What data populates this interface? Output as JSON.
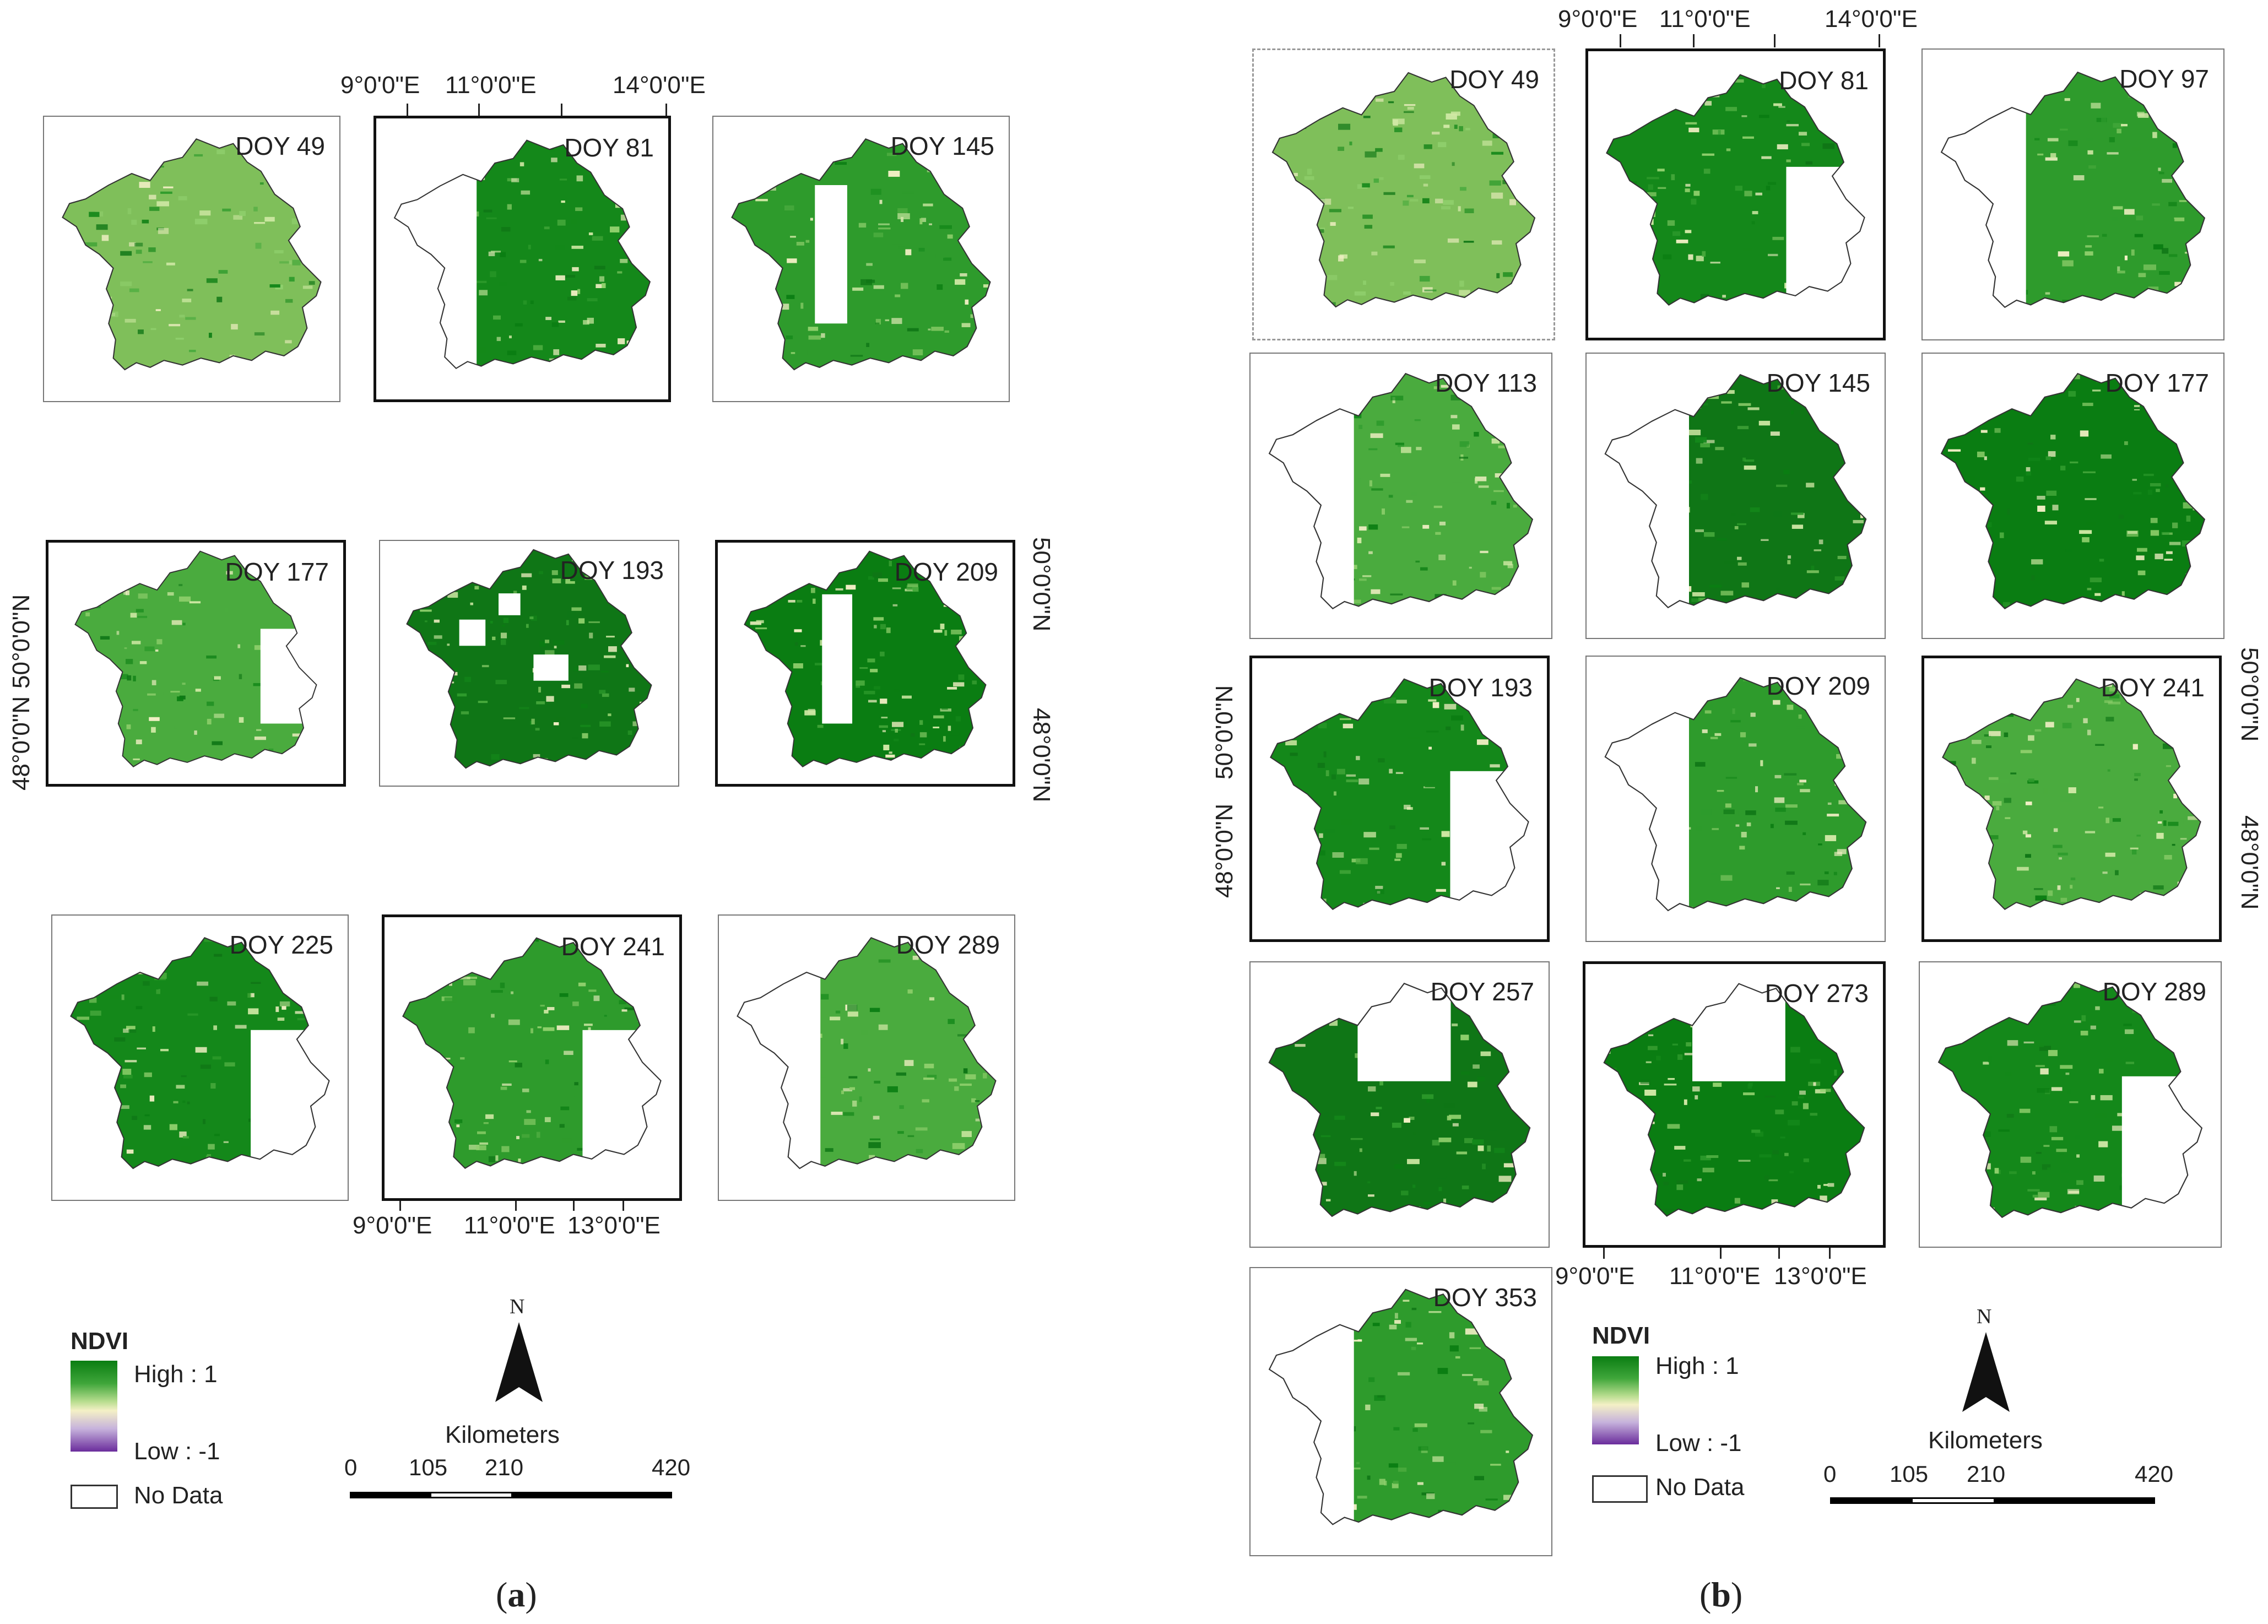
{
  "figure_a": {
    "label": "a",
    "panels": [
      {
        "doy": "DOY 49",
        "gaps": "none"
      },
      {
        "doy": "DOY 81",
        "gaps": "west"
      },
      {
        "doy": "DOY 145",
        "gaps": "strip"
      },
      {
        "doy": "DOY 177",
        "gaps": "east-strip"
      },
      {
        "doy": "DOY 193",
        "gaps": "scatter"
      },
      {
        "doy": "DOY 209",
        "gaps": "strip"
      },
      {
        "doy": "DOY 225",
        "gaps": "east"
      },
      {
        "doy": "DOY 241",
        "gaps": "east"
      },
      {
        "doy": "DOY 289",
        "gaps": "west"
      }
    ],
    "top_lon": [
      "9°0'0\"E",
      "11°0'0\"E",
      "14°0'0\"E"
    ],
    "bottom_lon": [
      "9°0'0\"E",
      "11°0'0\"E",
      "13°0'0\"E"
    ],
    "left_lat": [
      "50°0'0\"N",
      "48°0'0\"N"
    ],
    "right_lat": [
      "50°0'0\"N",
      "48°0'0\"N"
    ]
  },
  "figure_b": {
    "label": "b",
    "panels": [
      {
        "doy": "DOY 49",
        "gaps": "none"
      },
      {
        "doy": "DOY 81",
        "gaps": "east"
      },
      {
        "doy": "DOY 97",
        "gaps": "west"
      },
      {
        "doy": "DOY 113",
        "gaps": "west"
      },
      {
        "doy": "DOY 145",
        "gaps": "west"
      },
      {
        "doy": "DOY 177",
        "gaps": "none"
      },
      {
        "doy": "DOY 193",
        "gaps": "east"
      },
      {
        "doy": "DOY 209",
        "gaps": "west"
      },
      {
        "doy": "DOY 241",
        "gaps": "none"
      },
      {
        "doy": "DOY 257",
        "gaps": "north"
      },
      {
        "doy": "DOY 273",
        "gaps": "north"
      },
      {
        "doy": "DOY 289",
        "gaps": "east"
      },
      {
        "doy": "DOY 353",
        "gaps": "west"
      }
    ],
    "top_lon": [
      "9°0'0\"E",
      "11°0'0\"E",
      "14°0'0\"E"
    ],
    "bottom_lon": [
      "9°0'0\"E",
      "11°0'0\"E",
      "13°0'0\"E"
    ],
    "left_lat": [
      "50°0'0\"N",
      "48°0'0\"N"
    ],
    "right_lat": [
      "50°0'0\"N",
      "48°0'0\"N"
    ]
  },
  "legend": {
    "title": "NDVI",
    "high": "High : 1",
    "low": "Low : -1",
    "no_data": "No Data"
  },
  "scale": {
    "north": "N",
    "units": "Kilometers",
    "ticks": [
      "0",
      "105",
      "210",
      "420"
    ]
  },
  "colors": {
    "high": "#0a7d12",
    "mid": "#f4f0c6",
    "low": "#6a2c9c",
    "nodata": "#ffffff"
  }
}
